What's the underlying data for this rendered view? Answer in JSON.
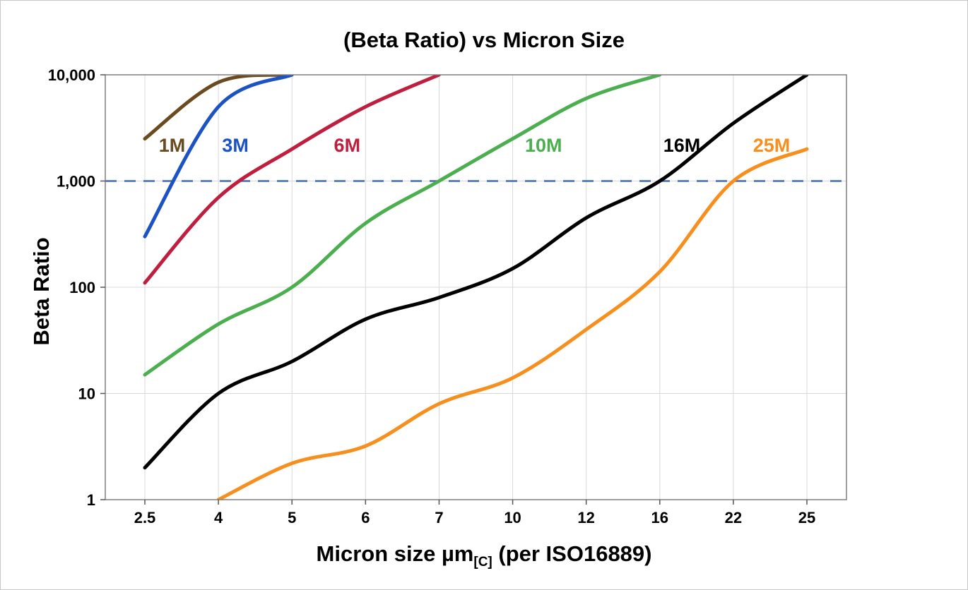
{
  "title": "(Beta Ratio) vs Micron Size",
  "y_axis": {
    "label": "Beta Ratio",
    "tick_labels": [
      "1",
      "10",
      "100",
      "1,000",
      "10,000"
    ],
    "tick_values": [
      1,
      10,
      100,
      1000,
      10000
    ]
  },
  "x_axis": {
    "label_prefix": "Micron size µm",
    "label_sub": "[C]",
    "label_suffix": " (per ISO16889)",
    "tick_labels": [
      "2.5",
      "4",
      "5",
      "6",
      "7",
      "10",
      "12",
      "16",
      "22",
      "25"
    ]
  },
  "chart_data": {
    "type": "line",
    "x_scale": "categorical",
    "y_scale": "log",
    "ylim": [
      1,
      10000
    ],
    "grid": true,
    "categories": [
      2.5,
      4,
      5,
      6,
      7,
      10,
      12,
      16,
      22,
      25
    ],
    "reference_line": {
      "value": 1000,
      "color": "#4169b8",
      "style": "dashed"
    },
    "series": [
      {
        "name": "1M",
        "color": "#6a4a1f",
        "values": [
          2500,
          8500,
          10000,
          null,
          null,
          null,
          null,
          null,
          null,
          null
        ],
        "label_pos": {
          "xi": 0.37,
          "v": 2100
        }
      },
      {
        "name": "3M",
        "color": "#1b52c4",
        "values": [
          300,
          5000,
          10000,
          null,
          null,
          null,
          null,
          null,
          null,
          null
        ],
        "label_pos": {
          "xi": 1.23,
          "v": 2100
        }
      },
      {
        "name": "6M",
        "color": "#c01e3e",
        "values": [
          110,
          700,
          2000,
          5000,
          10000,
          null,
          null,
          null,
          null,
          null
        ],
        "label_pos": {
          "xi": 2.75,
          "v": 2100
        }
      },
      {
        "name": "10M",
        "color": "#4bae4f",
        "values": [
          15,
          45,
          100,
          400,
          1000,
          2500,
          6000,
          10000,
          null,
          null
        ],
        "label_pos": {
          "xi": 5.42,
          "v": 2100
        }
      },
      {
        "name": "16M",
        "color": "#000000",
        "values": [
          2,
          10,
          20,
          50,
          80,
          150,
          450,
          1000,
          3500,
          10000
        ],
        "label_pos": {
          "xi": 7.3,
          "v": 2100
        }
      },
      {
        "name": "25M",
        "color": "#f78f1e",
        "values": [
          null,
          1,
          2.2,
          3.2,
          8,
          14,
          40,
          140,
          1000,
          2000
        ],
        "label_pos": {
          "xi": 8.52,
          "v": 2100
        }
      }
    ],
    "colors": {
      "grid": "#d9d9d9",
      "plot_border": "#7f7f7f",
      "tick": "#555555",
      "text": "#000000"
    }
  }
}
